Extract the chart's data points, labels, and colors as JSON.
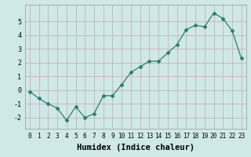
{
  "x": [
    0,
    1,
    2,
    3,
    4,
    5,
    6,
    7,
    8,
    9,
    10,
    11,
    12,
    13,
    14,
    15,
    16,
    17,
    18,
    19,
    20,
    21,
    22,
    23
  ],
  "y": [
    -0.1,
    -0.6,
    -1.0,
    -1.3,
    -2.2,
    -1.2,
    -2.0,
    -1.7,
    -0.4,
    -0.4,
    0.4,
    1.3,
    1.7,
    2.1,
    2.1,
    2.7,
    3.3,
    4.4,
    4.7,
    4.6,
    5.6,
    5.2,
    4.3,
    2.3
  ],
  "line_color": "#2d7d6e",
  "marker": "D",
  "marker_size": 2.5,
  "bg_color": "#cfe8e8",
  "grid_color": "#b8d8d8",
  "xlabel": "Humidex (Indice chaleur)",
  "ylabel": "",
  "xlim": [
    -0.5,
    23.5
  ],
  "ylim": [
    -2.8,
    6.2
  ],
  "yticks": [
    -2,
    -1,
    0,
    1,
    2,
    3,
    4,
    5
  ],
  "xtick_labels": [
    "0",
    "1",
    "2",
    "3",
    "4",
    "5",
    "6",
    "7",
    "8",
    "9",
    "10",
    "11",
    "12",
    "13",
    "14",
    "15",
    "16",
    "17",
    "18",
    "19",
    "20",
    "21",
    "22",
    "23"
  ],
  "tick_fontsize": 5.5,
  "xlabel_fontsize": 7.5,
  "label_color": "#000000"
}
